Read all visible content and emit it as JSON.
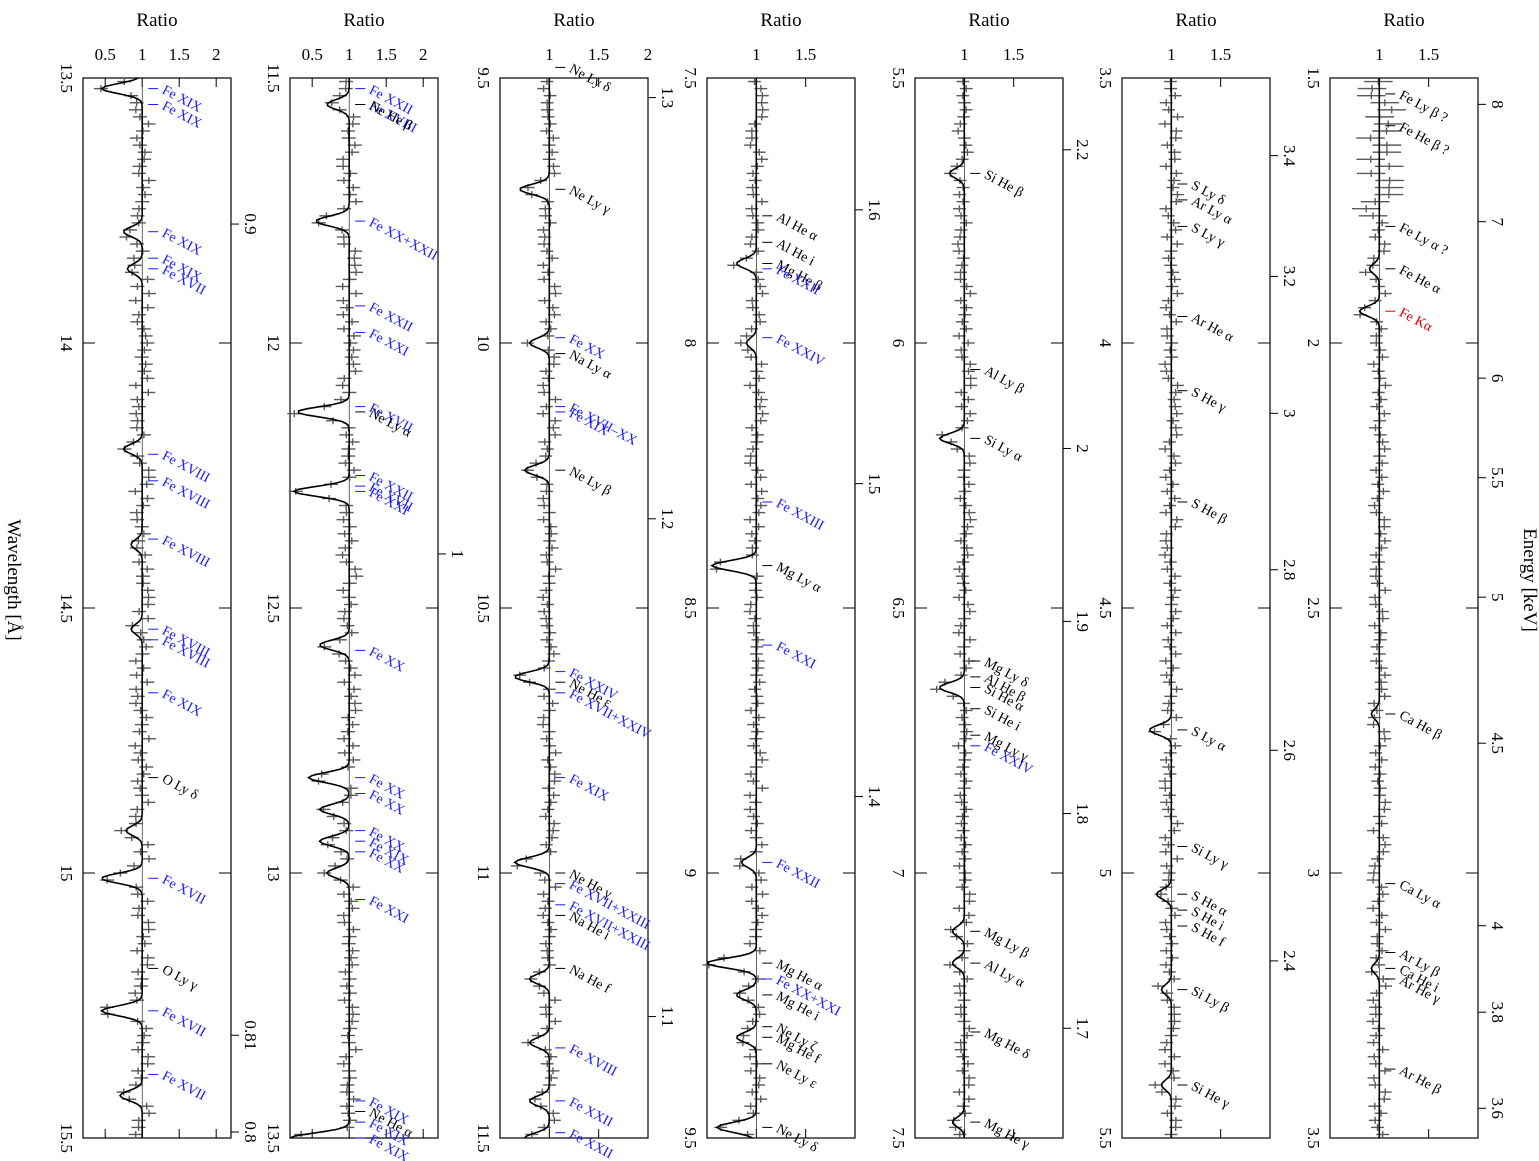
{
  "figure": {
    "ratio_label": "Ratio",
    "wavelength_label": "Wavelength [Å]",
    "energy_label": "Energy [keV]",
    "colors": {
      "fe_lines": "#1a1aff",
      "other_lines": "#000000",
      "fe_k_alpha": "#e00000",
      "data": "#5a5a5a",
      "model": "#000000"
    }
  },
  "chart_data": [
    {
      "type": "line",
      "panel": 1,
      "wavelength_range": [
        13.5,
        15.5
      ],
      "ratio_range": [
        0.2,
        2.2
      ],
      "ratio_ticks": [
        "0.5",
        "1",
        "1.5",
        "2"
      ],
      "wavelength_ticks": [
        "13.5",
        "14",
        "14.5",
        "15",
        "15.5"
      ],
      "energy_ticks": [
        "0.9",
        "0.81",
        "0.8"
      ],
      "absorption_dips": [
        [
          13.52,
          0.45
        ],
        [
          13.79,
          0.75
        ],
        [
          13.86,
          0.8
        ],
        [
          14.2,
          0.75
        ],
        [
          14.38,
          0.85
        ],
        [
          14.54,
          0.85
        ],
        [
          14.92,
          0.78
        ],
        [
          15.01,
          0.45
        ],
        [
          15.26,
          0.45
        ],
        [
          15.42,
          0.7
        ]
      ],
      "lines": [
        {
          "label": "Fe XIX",
          "wl": 13.52,
          "color": "#1a1aff"
        },
        {
          "label": "Fe XIX",
          "wl": 13.55,
          "color": "#1a1aff"
        },
        {
          "label": "Fe XIX",
          "wl": 13.79,
          "color": "#1a1aff"
        },
        {
          "label": "Fe XIX",
          "wl": 13.84,
          "color": "#1a1aff"
        },
        {
          "label": "Fe XVII",
          "wl": 13.86,
          "color": "#1a1aff"
        },
        {
          "label": "Fe XVIII",
          "wl": 14.21,
          "color": "#1a1aff"
        },
        {
          "label": "Fe XVIII",
          "wl": 14.26,
          "color": "#1a1aff"
        },
        {
          "label": "Fe XVIII",
          "wl": 14.37,
          "color": "#1a1aff"
        },
        {
          "label": "Fe XVIII",
          "wl": 14.54,
          "color": "#1a1aff"
        },
        {
          "label": "Fe XVIII",
          "wl": 14.56,
          "color": "#1a1aff"
        },
        {
          "label": "Fe XIX",
          "wl": 14.66,
          "color": "#1a1aff"
        },
        {
          "label": "O Ly δ",
          "wl": 14.82,
          "color": "#000000"
        },
        {
          "label": "Fe XVII",
          "wl": 15.01,
          "color": "#1a1aff"
        },
        {
          "label": "O Ly γ",
          "wl": 15.18,
          "color": "#000000"
        },
        {
          "label": "Fe XVII",
          "wl": 15.26,
          "color": "#1a1aff"
        },
        {
          "label": "Fe XVII",
          "wl": 15.38,
          "color": "#1a1aff"
        }
      ]
    },
    {
      "type": "line",
      "panel": 2,
      "wavelength_range": [
        11.5,
        13.5
      ],
      "ratio_range": [
        0.2,
        2.2
      ],
      "ratio_ticks": [
        "0.5",
        "1",
        "1.5",
        "2"
      ],
      "wavelength_ticks": [
        "11.5",
        "12",
        "12.5",
        "13",
        "13.5"
      ],
      "energy_ticks": [
        "1"
      ],
      "absorption_dips": [
        [
          11.55,
          0.7
        ],
        [
          11.77,
          0.55
        ],
        [
          12.13,
          0.3
        ],
        [
          12.28,
          0.25
        ],
        [
          12.57,
          0.6
        ],
        [
          12.82,
          0.45
        ],
        [
          12.88,
          0.6
        ],
        [
          12.94,
          0.6
        ],
        [
          13.0,
          0.7
        ],
        [
          13.5,
          0.2
        ]
      ],
      "lines": [
        {
          "label": "Fe XXII",
          "wl": 11.52,
          "color": "#1a1aff"
        },
        {
          "label": "Fe XVIII",
          "wl": 11.55,
          "color": "#1a1aff"
        },
        {
          "label": "Ne He β",
          "wl": 11.55,
          "color": "#000000"
        },
        {
          "label": "Fe XX+XXII",
          "wl": 11.77,
          "color": "#1a1aff"
        },
        {
          "label": "Fe XXII",
          "wl": 11.93,
          "color": "#1a1aff"
        },
        {
          "label": "Fe XXI",
          "wl": 11.98,
          "color": "#1a1aff"
        },
        {
          "label": "Fe XVII",
          "wl": 12.12,
          "color": "#1a1aff"
        },
        {
          "label": "Ne Ly α",
          "wl": 12.13,
          "color": "#000000"
        },
        {
          "label": "Fe XXII",
          "wl": 12.25,
          "color": "#1a1aff"
        },
        {
          "label": "Fe XVII",
          "wl": 12.27,
          "color": "#1a1aff"
        },
        {
          "label": "Fe XXI",
          "wl": 12.28,
          "color": "#1a1aff"
        },
        {
          "label": "Fe XX",
          "wl": 12.58,
          "color": "#1a1aff"
        },
        {
          "label": "Fe XX",
          "wl": 12.82,
          "color": "#1a1aff"
        },
        {
          "label": "Fe XX",
          "wl": 12.85,
          "color": "#1a1aff"
        },
        {
          "label": "Fe XX",
          "wl": 12.92,
          "color": "#1a1aff"
        },
        {
          "label": "Fe XIX",
          "wl": 12.94,
          "color": "#1a1aff"
        },
        {
          "label": "Fe XX",
          "wl": 12.96,
          "color": "#1a1aff"
        },
        {
          "label": "Fe XXI",
          "wl": 13.05,
          "color": "#1a1aff"
        },
        {
          "label": "Fe XIX",
          "wl": 13.43,
          "color": "#1a1aff"
        },
        {
          "label": "Ne He α",
          "wl": 13.45,
          "color": "#000000"
        },
        {
          "label": "Fe XIX",
          "wl": 13.47,
          "color": "#1a1aff"
        },
        {
          "label": "Fe XIX",
          "wl": 13.5,
          "color": "#1a1aff"
        }
      ]
    },
    {
      "type": "line",
      "panel": 3,
      "wavelength_range": [
        9.5,
        11.5
      ],
      "ratio_range": [
        0.5,
        2.0
      ],
      "ratio_ticks": [
        "1",
        "1.5",
        "2"
      ],
      "wavelength_ticks": [
        "9.5",
        "10",
        "10.5",
        "11",
        "11.5"
      ],
      "energy_ticks": [
        "1.3",
        "1.2",
        "1.1"
      ],
      "absorption_dips": [
        [
          9.71,
          0.7
        ],
        [
          10.0,
          0.8
        ],
        [
          10.24,
          0.75
        ],
        [
          10.63,
          0.65
        ],
        [
          10.98,
          0.65
        ],
        [
          11.2,
          0.8
        ],
        [
          11.32,
          0.8
        ],
        [
          11.43,
          0.8
        ],
        [
          11.5,
          0.75
        ]
      ],
      "lines": [
        {
          "label": "Ne Ly δ",
          "wl": 9.48,
          "color": "#000000"
        },
        {
          "label": "Ne Ly γ",
          "wl": 9.71,
          "color": "#000000"
        },
        {
          "label": "Fe XX",
          "wl": 9.99,
          "color": "#1a1aff"
        },
        {
          "label": "Na Ly α",
          "wl": 10.02,
          "color": "#000000"
        },
        {
          "label": "Fe XVII–XX",
          "wl": 10.12,
          "color": "#1a1aff"
        },
        {
          "label": "Fe XIX",
          "wl": 10.13,
          "color": "#1a1aff"
        },
        {
          "label": "Ne Ly β",
          "wl": 10.24,
          "color": "#000000"
        },
        {
          "label": "Fe XXIV",
          "wl": 10.62,
          "color": "#1a1aff"
        },
        {
          "label": "Ne He ε",
          "wl": 10.64,
          "color": "#000000"
        },
        {
          "label": "Fe XVII+XXIV",
          "wl": 10.66,
          "color": "#1a1aff"
        },
        {
          "label": "Fe XIX",
          "wl": 10.82,
          "color": "#1a1aff"
        },
        {
          "label": "Ne He γ",
          "wl": 11.0,
          "color": "#000000"
        },
        {
          "label": "Fe XVII+XXIII",
          "wl": 11.02,
          "color": "#1a1aff"
        },
        {
          "label": "Fe XVII+XXIII",
          "wl": 11.06,
          "color": "#1a1aff"
        },
        {
          "label": "Na He i",
          "wl": 11.08,
          "color": "#000000"
        },
        {
          "label": "Na He f",
          "wl": 11.18,
          "color": "#000000"
        },
        {
          "label": "Fe XVIII",
          "wl": 11.33,
          "color": "#1a1aff"
        },
        {
          "label": "Fe XXII",
          "wl": 11.43,
          "color": "#1a1aff"
        },
        {
          "label": "Fe XXII",
          "wl": 11.49,
          "color": "#1a1aff"
        }
      ]
    },
    {
      "type": "line",
      "panel": 4,
      "wavelength_range": [
        7.5,
        9.5
      ],
      "ratio_range": [
        0.5,
        2.0
      ],
      "ratio_ticks": [
        "1",
        "1.5"
      ],
      "wavelength_ticks": [
        "7.5",
        "8",
        "8.5",
        "9",
        "9.5"
      ],
      "energy_ticks": [
        "1.6",
        "1.5",
        "1.4"
      ],
      "absorption_dips": [
        [
          7.85,
          0.8
        ],
        [
          8.0,
          0.9
        ],
        [
          8.42,
          0.55
        ],
        [
          8.98,
          0.85
        ],
        [
          9.17,
          0.5
        ],
        [
          9.23,
          0.8
        ],
        [
          9.31,
          0.8
        ],
        [
          9.48,
          0.6
        ]
      ],
      "lines": [
        {
          "label": "Al He α",
          "wl": 7.76,
          "color": "#000000"
        },
        {
          "label": "Al He i",
          "wl": 7.81,
          "color": "#000000"
        },
        {
          "label": "Mg He β",
          "wl": 7.85,
          "color": "#000000"
        },
        {
          "label": "Fe XXII",
          "wl": 7.86,
          "color": "#1a1aff"
        },
        {
          "label": "Fe XXIV",
          "wl": 7.99,
          "color": "#1a1aff"
        },
        {
          "label": "Fe XXIII",
          "wl": 8.3,
          "color": "#1a1aff"
        },
        {
          "label": "Mg Ly α",
          "wl": 8.42,
          "color": "#000000"
        },
        {
          "label": "Fe XXI",
          "wl": 8.57,
          "color": "#1a1aff"
        },
        {
          "label": "Fe XXII",
          "wl": 8.98,
          "color": "#1a1aff"
        },
        {
          "label": "Mg He α",
          "wl": 9.17,
          "color": "#000000"
        },
        {
          "label": "Fe XX+XXI",
          "wl": 9.2,
          "color": "#1a1aff"
        },
        {
          "label": "Mg He i",
          "wl": 9.23,
          "color": "#000000"
        },
        {
          "label": "Ne Ly ζ",
          "wl": 9.29,
          "color": "#000000"
        },
        {
          "label": "Mg He f",
          "wl": 9.31,
          "color": "#000000"
        },
        {
          "label": "Ne Ly ε",
          "wl": 9.36,
          "color": "#000000"
        },
        {
          "label": "Ne Ly δ",
          "wl": 9.48,
          "color": "#000000"
        }
      ]
    },
    {
      "type": "line",
      "panel": 5,
      "wavelength_range": [
        5.5,
        7.5
      ],
      "ratio_range": [
        0.5,
        2.0
      ],
      "ratio_ticks": [
        "1",
        "1.5"
      ],
      "wavelength_ticks": [
        "5.5",
        "6",
        "6.5",
        "7",
        "7.5"
      ],
      "energy_ticks": [
        "2.2",
        "2",
        "1.9",
        "1.8",
        "1.7"
      ],
      "absorption_dips": [
        [
          5.68,
          0.85
        ],
        [
          6.18,
          0.75
        ],
        [
          6.65,
          0.75
        ],
        [
          7.11,
          0.88
        ],
        [
          7.17,
          0.88
        ],
        [
          7.47,
          0.88
        ]
      ],
      "lines": [
        {
          "label": "Si He β",
          "wl": 5.68,
          "color": "#000000"
        },
        {
          "label": "Al Ly β",
          "wl": 6.05,
          "color": "#000000"
        },
        {
          "label": "Si Ly α",
          "wl": 6.18,
          "color": "#000000"
        },
        {
          "label": "Mg Ly δ",
          "wl": 6.6,
          "color": "#000000"
        },
        {
          "label": "Al He β",
          "wl": 6.63,
          "color": "#000000"
        },
        {
          "label": "Si He α",
          "wl": 6.65,
          "color": "#000000"
        },
        {
          "label": "Mg Ly γ",
          "wl": 6.74,
          "color": "#000000"
        },
        {
          "label": "Si He i",
          "wl": 6.69,
          "color": "#000000"
        },
        {
          "label": "Fe XXIV",
          "wl": 6.76,
          "color": "#1a1aff"
        },
        {
          "label": "Mg Ly β",
          "wl": 7.11,
          "color": "#000000"
        },
        {
          "label": "Al Ly α",
          "wl": 7.17,
          "color": "#000000"
        },
        {
          "label": "Mg He δ",
          "wl": 7.3,
          "color": "#000000"
        },
        {
          "label": "Mg He γ",
          "wl": 7.47,
          "color": "#000000"
        }
      ]
    },
    {
      "type": "line",
      "panel": 6,
      "wavelength_range": [
        3.5,
        5.5
      ],
      "ratio_range": [
        0.5,
        2.0
      ],
      "ratio_ticks": [
        "1",
        "1.5"
      ],
      "wavelength_ticks": [
        "3.5",
        "4",
        "4.5",
        "5",
        "5.5"
      ],
      "energy_ticks": [
        "3.4",
        "3.2",
        "3",
        "2.8",
        "2.6",
        "2.4"
      ],
      "absorption_dips": [
        [
          4.73,
          0.78
        ],
        [
          5.04,
          0.85
        ],
        [
          5.22,
          0.9
        ],
        [
          5.4,
          0.9
        ]
      ],
      "lines": [
        {
          "label": "S Ly δ",
          "wl": 3.7,
          "color": "#000000"
        },
        {
          "label": "Ar Ly α",
          "wl": 3.73,
          "color": "#000000"
        },
        {
          "label": "S Ly γ",
          "wl": 3.78,
          "color": "#000000"
        },
        {
          "label": "Ar He α",
          "wl": 3.95,
          "color": "#000000"
        },
        {
          "label": "S He γ",
          "wl": 4.09,
          "color": "#000000"
        },
        {
          "label": "S He β",
          "wl": 4.3,
          "color": "#000000"
        },
        {
          "label": "S Ly α",
          "wl": 4.73,
          "color": "#000000"
        },
        {
          "label": "Si Ly γ",
          "wl": 4.95,
          "color": "#000000"
        },
        {
          "label": "S He α",
          "wl": 5.04,
          "color": "#000000"
        },
        {
          "label": "S He i",
          "wl": 5.07,
          "color": "#000000"
        },
        {
          "label": "S He f",
          "wl": 5.1,
          "color": "#000000"
        },
        {
          "label": "Si Ly β",
          "wl": 5.22,
          "color": "#000000"
        },
        {
          "label": "Si He γ",
          "wl": 5.4,
          "color": "#000000"
        }
      ]
    },
    {
      "type": "line",
      "panel": 7,
      "wavelength_range": [
        1.5,
        3.5
      ],
      "ratio_range": [
        0.5,
        2.0
      ],
      "ratio_ticks": [
        "1",
        "1.5"
      ],
      "wavelength_ticks": [
        "1.5",
        "2",
        "2.5",
        "3",
        "3.5"
      ],
      "energy_ticks": [
        "8",
        "7",
        "6",
        "5.5",
        "5",
        "4.5",
        "4",
        "3.8",
        "3.6"
      ],
      "absorption_dips": [
        [
          1.86,
          0.9
        ],
        [
          1.94,
          0.8
        ],
        [
          2.7,
          0.92
        ],
        [
          3.18,
          0.92
        ]
      ],
      "lines": [
        {
          "label": "Fe Ly β ?",
          "wl": 1.53,
          "color": "#000000"
        },
        {
          "label": "Fe He β ?",
          "wl": 1.59,
          "color": "#000000"
        },
        {
          "label": "Fe Ly α ?",
          "wl": 1.78,
          "color": "#000000"
        },
        {
          "label": "Fe He α",
          "wl": 1.86,
          "color": "#000000"
        },
        {
          "label": "Fe Kα",
          "wl": 1.94,
          "color": "#e00000"
        },
        {
          "label": "Ca He β",
          "wl": 2.7,
          "color": "#000000"
        },
        {
          "label": "Ca Ly α",
          "wl": 3.02,
          "color": "#000000"
        },
        {
          "label": "Ar Ly β",
          "wl": 3.15,
          "color": "#000000"
        },
        {
          "label": "Ca He i",
          "wl": 3.18,
          "color": "#000000"
        },
        {
          "label": "Ar He γ",
          "wl": 3.2,
          "color": "#000000"
        },
        {
          "label": "Ar He β",
          "wl": 3.37,
          "color": "#000000"
        }
      ]
    }
  ]
}
